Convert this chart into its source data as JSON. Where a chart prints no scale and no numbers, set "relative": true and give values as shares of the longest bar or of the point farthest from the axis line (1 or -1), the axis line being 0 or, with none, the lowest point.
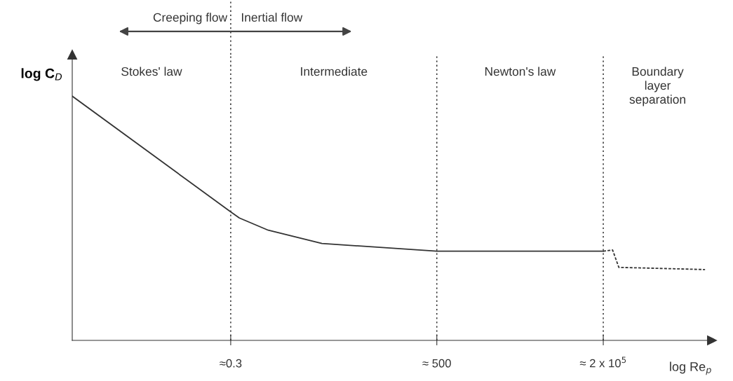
{
  "chart_data": {
    "type": "line",
    "relative": true,
    "xlabel": "log Re$_{p}$",
    "ylabel": "log C$_{D}$",
    "log": "x",
    "xlim": [
      0.001,
      10000000
    ],
    "xticks": [
      {
        "value": 0.3,
        "label": "≈0.3"
      },
      {
        "value": 500,
        "label": "≈ 500"
      },
      {
        "value": 200000,
        "label": "≈ 2 x 10$^{5}$"
      }
    ],
    "tick_labels": "x",
    "grid": false,
    "legend": false,
    "marker": "none",
    "series": [
      {
        "color": "#333333",
        "line_style": "solid",
        "x": [
          0.001,
          0.3,
          0.41,
          1.16,
          8,
          500,
          200000
        ],
        "values": [
          1.0,
          0.526,
          0.501,
          0.451,
          0.397,
          0.365,
          0.365
        ]
      },
      {
        "color": "#333333",
        "line_style": "dashed",
        "x": [
          200000,
          280000,
          350000,
          7800000
        ],
        "values": [
          0.365,
          0.37,
          0.299,
          0.29
        ]
      }
    ],
    "ref_lines": [
      {
        "axis": "x",
        "value": 0.3,
        "line_style": "dotted",
        "color": "#333333"
      },
      {
        "axis": "x",
        "value": 500,
        "line_style": "dotted",
        "color": "#333333"
      },
      {
        "axis": "x",
        "value": 200000,
        "line_style": "dotted",
        "color": "#333333"
      }
    ],
    "annotations": [
      "Creeping flow",
      "Inertial flow",
      "Stokes' law",
      "Intermediate",
      "Newton's law",
      "Boundary\nlayer\nseparation"
    ]
  }
}
